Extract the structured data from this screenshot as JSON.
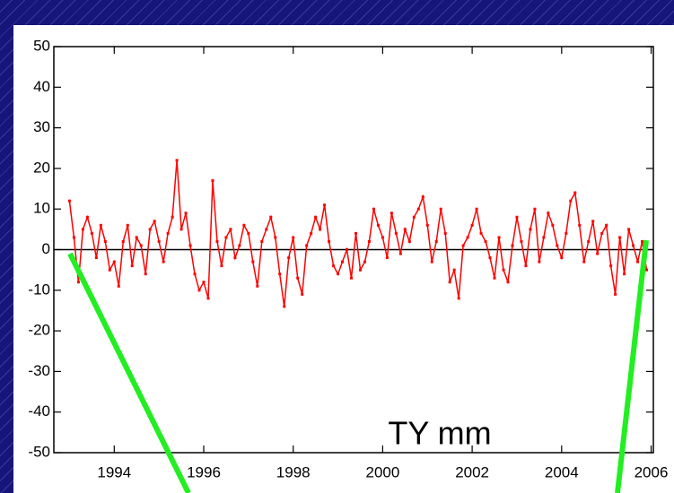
{
  "chart_data": {
    "type": "line",
    "annotation": "TY mm",
    "color": "#ff0000",
    "xlim": [
      1992.65,
      2006.05
    ],
    "ylim": [
      -50,
      50
    ],
    "xticks": [
      1994,
      1996,
      1998,
      2000,
      2002,
      2004,
      2006
    ],
    "yticks": [
      50,
      40,
      30,
      20,
      10,
      0,
      -10,
      -20,
      -30,
      -40,
      -50
    ],
    "x": [
      1993.0,
      1993.1,
      1993.2,
      1993.3,
      1993.4,
      1993.5,
      1993.6,
      1993.7,
      1993.8,
      1993.9,
      1994.0,
      1994.1,
      1994.2,
      1994.3,
      1994.4,
      1994.5,
      1994.6,
      1994.7,
      1994.8,
      1994.9,
      1995.0,
      1995.1,
      1995.2,
      1995.3,
      1995.4,
      1995.5,
      1995.6,
      1995.7,
      1995.8,
      1995.9,
      1996.0,
      1996.1,
      1996.2,
      1996.3,
      1996.4,
      1996.5,
      1996.6,
      1996.7,
      1996.8,
      1996.9,
      1997.0,
      1997.1,
      1997.2,
      1997.3,
      1997.4,
      1997.5,
      1997.6,
      1997.7,
      1997.8,
      1997.9,
      1998.0,
      1998.1,
      1998.2,
      1998.3,
      1998.4,
      1998.5,
      1998.6,
      1998.7,
      1998.8,
      1998.9,
      1999.0,
      1999.1,
      1999.2,
      1999.3,
      1999.4,
      1999.5,
      1999.6,
      1999.7,
      1999.8,
      1999.9,
      2000.0,
      2000.1,
      2000.2,
      2000.3,
      2000.4,
      2000.5,
      2000.6,
      2000.7,
      2000.8,
      2000.9,
      2001.0,
      2001.1,
      2001.2,
      2001.3,
      2001.4,
      2001.5,
      2001.6,
      2001.7,
      2001.8,
      2001.9,
      2002.0,
      2002.1,
      2002.2,
      2002.3,
      2002.4,
      2002.5,
      2002.6,
      2002.7,
      2002.8,
      2002.9,
      2003.0,
      2003.1,
      2003.2,
      2003.3,
      2003.4,
      2003.5,
      2003.6,
      2003.7,
      2003.8,
      2003.9,
      2004.0,
      2004.1,
      2004.2,
      2004.3,
      2004.4,
      2004.5,
      2004.6,
      2004.7,
      2004.8,
      2004.9,
      2005.0,
      2005.1,
      2005.2,
      2005.3,
      2005.4,
      2005.5,
      2005.6,
      2005.7,
      2005.8,
      2005.9
    ],
    "values": [
      12,
      3,
      -8,
      5,
      8,
      4,
      -2,
      6,
      2,
      -5,
      -3,
      -9,
      2,
      6,
      -4,
      3,
      1,
      -6,
      5,
      7,
      2,
      -3,
      4,
      8,
      22,
      5,
      9,
      1,
      -6,
      -10,
      -8,
      -12,
      17,
      2,
      -4,
      3,
      5,
      -2,
      1,
      6,
      4,
      -3,
      -9,
      2,
      5,
      8,
      3,
      -6,
      -14,
      -2,
      3,
      -7,
      -11,
      1,
      4,
      8,
      5,
      11,
      2,
      -4,
      -6,
      -3,
      0,
      -7,
      4,
      -5,
      -3,
      2,
      10,
      6,
      3,
      -2,
      9,
      4,
      -1,
      5,
      2,
      8,
      10,
      13,
      6,
      -3,
      2,
      10,
      4,
      -8,
      -5,
      -12,
      1,
      3,
      6,
      10,
      4,
      2,
      -2,
      -7,
      3,
      -5,
      -8,
      1,
      8,
      2,
      -4,
      5,
      10,
      -3,
      3,
      9,
      6,
      1,
      -2,
      4,
      12,
      14,
      6,
      -3,
      2,
      7,
      -1,
      4,
      6,
      -4,
      -11,
      3,
      -6,
      5,
      1,
      -3,
      2,
      -5
    ]
  }
}
